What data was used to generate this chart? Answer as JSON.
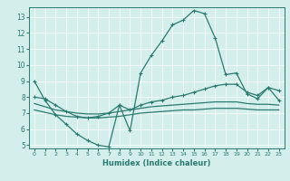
{
  "xlabel": "Humidex (Indice chaleur)",
  "bg_color": "#d4eeec",
  "grid_color": "#b0d8d4",
  "line_color": "#2a7a6f",
  "xlim": [
    -0.5,
    23.5
  ],
  "ylim": [
    4.8,
    13.6
  ],
  "yticks": [
    5,
    6,
    7,
    8,
    9,
    10,
    11,
    12,
    13
  ],
  "xticks": [
    0,
    1,
    2,
    3,
    4,
    5,
    6,
    7,
    8,
    9,
    10,
    11,
    12,
    13,
    14,
    15,
    16,
    17,
    18,
    19,
    20,
    21,
    22,
    23
  ],
  "lines": [
    {
      "x": [
        0,
        1,
        2,
        3,
        4,
        5,
        6,
        7,
        8,
        9,
        10,
        11,
        12,
        13,
        14,
        15,
        16,
        17,
        18,
        19,
        20,
        21,
        22,
        23
      ],
      "y": [
        9.0,
        7.8,
        6.9,
        6.3,
        5.7,
        5.3,
        5.0,
        4.9,
        7.5,
        5.9,
        9.5,
        10.6,
        11.5,
        12.5,
        12.8,
        13.4,
        13.2,
        11.7,
        9.4,
        9.5,
        8.2,
        7.9,
        8.6,
        7.8
      ],
      "marker": true
    },
    {
      "x": [
        0,
        1,
        2,
        3,
        4,
        5,
        6,
        7,
        8,
        9,
        10,
        11,
        12,
        13,
        14,
        15,
        16,
        17,
        18,
        19,
        20,
        21,
        22,
        23
      ],
      "y": [
        8.0,
        7.9,
        7.5,
        7.1,
        6.8,
        6.7,
        6.8,
        7.0,
        7.5,
        7.2,
        7.5,
        7.7,
        7.8,
        8.0,
        8.1,
        8.3,
        8.5,
        8.7,
        8.8,
        8.8,
        8.3,
        8.1,
        8.6,
        8.4
      ],
      "marker": true
    },
    {
      "x": [
        0,
        1,
        2,
        3,
        4,
        5,
        6,
        7,
        8,
        9,
        10,
        11,
        12,
        13,
        14,
        15,
        16,
        17,
        18,
        19,
        20,
        21,
        22,
        23
      ],
      "y": [
        7.6,
        7.4,
        7.2,
        7.1,
        7.0,
        6.95,
        6.95,
        7.0,
        7.1,
        7.2,
        7.3,
        7.4,
        7.45,
        7.5,
        7.55,
        7.6,
        7.65,
        7.7,
        7.7,
        7.7,
        7.6,
        7.55,
        7.55,
        7.5
      ],
      "marker": false
    },
    {
      "x": [
        0,
        1,
        2,
        3,
        4,
        5,
        6,
        7,
        8,
        9,
        10,
        11,
        12,
        13,
        14,
        15,
        16,
        17,
        18,
        19,
        20,
        21,
        22,
        23
      ],
      "y": [
        7.2,
        7.05,
        6.9,
        6.8,
        6.75,
        6.7,
        6.7,
        6.75,
        6.8,
        6.9,
        7.0,
        7.05,
        7.1,
        7.15,
        7.2,
        7.2,
        7.25,
        7.3,
        7.3,
        7.3,
        7.25,
        7.2,
        7.2,
        7.2
      ],
      "marker": false
    }
  ]
}
